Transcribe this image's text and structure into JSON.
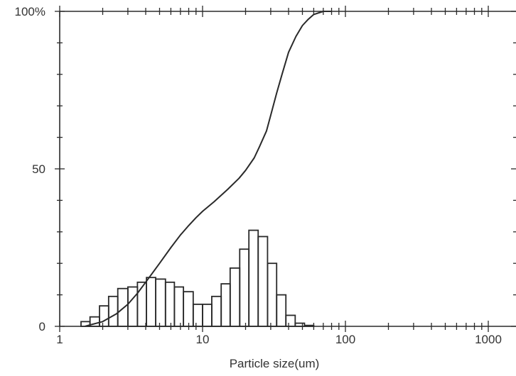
{
  "chart_data": {
    "type": "bar",
    "xlabel": "Particle size(um)",
    "ylabel": "",
    "x_scale": "log",
    "xlim": [
      1,
      2000
    ],
    "ylim": [
      0,
      100
    ],
    "x_tick_labels": [
      {
        "value": 1,
        "label": "1"
      },
      {
        "value": 10,
        "label": "10"
      },
      {
        "value": 100,
        "label": "100"
      },
      {
        "value": 1000,
        "label": "1000"
      }
    ],
    "y_tick_labels": [
      {
        "value": 0,
        "label": "0"
      },
      {
        "value": 50,
        "label": "50"
      },
      {
        "value": 100,
        "label": "100%"
      }
    ],
    "histogram": {
      "bins": [
        {
          "from": 1.41,
          "to": 1.63,
          "value": 1.5
        },
        {
          "from": 1.63,
          "to": 1.9,
          "value": 3.0
        },
        {
          "from": 1.9,
          "to": 2.2,
          "value": 6.5
        },
        {
          "from": 2.2,
          "to": 2.55,
          "value": 9.5
        },
        {
          "from": 2.55,
          "to": 3.0,
          "value": 12.0
        },
        {
          "from": 3.0,
          "to": 3.5,
          "value": 12.5
        },
        {
          "from": 3.5,
          "to": 4.05,
          "value": 14.0
        },
        {
          "from": 4.05,
          "to": 4.7,
          "value": 15.5
        },
        {
          "from": 4.7,
          "to": 5.5,
          "value": 15.0
        },
        {
          "from": 5.5,
          "to": 6.35,
          "value": 14.0
        },
        {
          "from": 6.35,
          "to": 7.35,
          "value": 12.5
        },
        {
          "from": 7.35,
          "to": 8.6,
          "value": 11.0
        },
        {
          "from": 8.6,
          "to": 10.0,
          "value": 7.0
        },
        {
          "from": 10.0,
          "to": 11.6,
          "value": 7.0
        },
        {
          "from": 11.6,
          "to": 13.5,
          "value": 9.5
        },
        {
          "from": 13.5,
          "to": 15.6,
          "value": 13.5
        },
        {
          "from": 15.6,
          "to": 18.2,
          "value": 18.5
        },
        {
          "from": 18.2,
          "to": 21.1,
          "value": 24.5
        },
        {
          "from": 21.1,
          "to": 24.5,
          "value": 30.5
        },
        {
          "from": 24.5,
          "to": 28.5,
          "value": 28.5
        },
        {
          "from": 28.5,
          "to": 33.0,
          "value": 20.0
        },
        {
          "from": 33.0,
          "to": 38.3,
          "value": 10.0
        },
        {
          "from": 38.3,
          "to": 44.5,
          "value": 3.5
        },
        {
          "from": 44.5,
          "to": 51.7,
          "value": 1.0
        },
        {
          "from": 51.7,
          "to": 60.0,
          "value": 0.3
        }
      ]
    },
    "cumulative": {
      "x": [
        1.5,
        2.0,
        2.5,
        3.0,
        3.5,
        4.0,
        5.0,
        6.0,
        7.0,
        8.0,
        9.0,
        10.0,
        12.0,
        15.0,
        18.0,
        20.0,
        23.0,
        25.0,
        28.0,
        30.0,
        33.0,
        36.0,
        40.0,
        45.0,
        50.0,
        55.0,
        60.0,
        70.0,
        80.0
      ],
      "y": [
        0.0,
        1.5,
        4.0,
        7.0,
        10.5,
        14.0,
        20.0,
        25.0,
        29.0,
        32.0,
        34.5,
        36.5,
        39.5,
        43.5,
        47.0,
        49.5,
        53.5,
        57.0,
        62.0,
        67.0,
        74.0,
        80.0,
        87.0,
        92.0,
        95.5,
        97.5,
        99.0,
        100.0,
        100.0
      ]
    },
    "grid": false
  }
}
